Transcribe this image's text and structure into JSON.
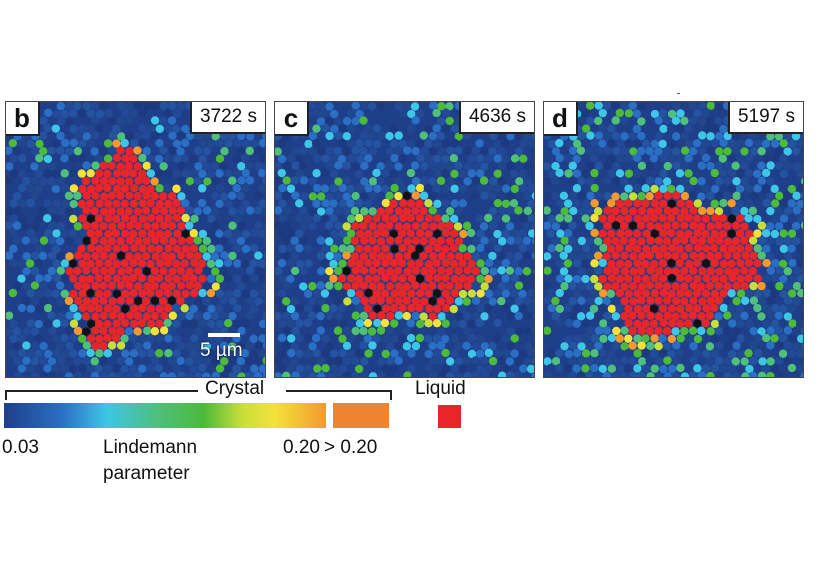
{
  "panels": [
    {
      "letter": "b",
      "time": "3722 s"
    },
    {
      "letter": "c",
      "time": "4636 s"
    },
    {
      "letter": "d",
      "time": "5197 s"
    }
  ],
  "scale_bar": {
    "label": "5 µm"
  },
  "legend": {
    "crystal_label": "Crystal",
    "liquid_label": "Liquid",
    "min_value": "0.03",
    "max_value": "0.20",
    "over_value": "> 0.20",
    "parameter_line1": "Lindemann",
    "parameter_line2": "parameter"
  },
  "colors": {
    "low": "#1f3f8a",
    "mid": "#4cba3a",
    "high": "#f29a30",
    "over": "#ef8430",
    "liquid": "#e8262a"
  }
}
